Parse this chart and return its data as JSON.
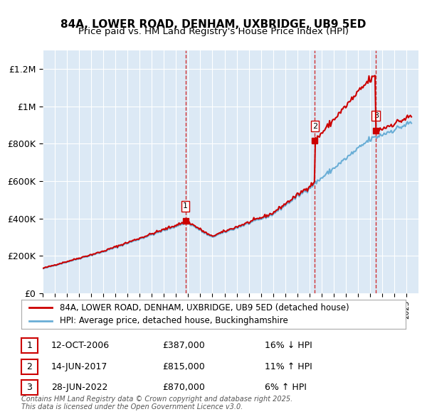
{
  "title": "84A, LOWER ROAD, DENHAM, UXBRIDGE, UB9 5ED",
  "subtitle": "Price paid vs. HM Land Registry's House Price Index (HPI)",
  "background_color": "#dce9f5",
  "plot_bg_color": "#dce9f5",
  "hpi_color": "#6aaed6",
  "price_color": "#cc0000",
  "vline_color": "#cc0000",
  "ylabel": "",
  "ylim": [
    0,
    1300000
  ],
  "yticks": [
    0,
    200000,
    400000,
    600000,
    800000,
    1000000,
    1200000
  ],
  "ytick_labels": [
    "£0",
    "£200K",
    "£400K",
    "£600K",
    "£800K",
    "£1M",
    "£1.2M"
  ],
  "sale_dates": [
    "2006-10-12",
    "2017-06-14",
    "2022-06-28"
  ],
  "sale_prices": [
    387000,
    815000,
    870000
  ],
  "sale_labels": [
    "1",
    "2",
    "3"
  ],
  "sale_info": [
    {
      "num": "1",
      "date": "12-OCT-2006",
      "price": "£387,000",
      "hpi": "16% ↓ HPI"
    },
    {
      "num": "2",
      "date": "14-JUN-2017",
      "price": "£815,000",
      "hpi": "11% ↑ HPI"
    },
    {
      "num": "3",
      "date": "28-JUN-2022",
      "price": "£870,000",
      "hpi": "6% ↑ HPI"
    }
  ],
  "legend_line1": "84A, LOWER ROAD, DENHAM, UXBRIDGE, UB9 5ED (detached house)",
  "legend_line2": "HPI: Average price, detached house, Buckinghamshire",
  "footer": "Contains HM Land Registry data © Crown copyright and database right 2025.\nThis data is licensed under the Open Government Licence v3.0."
}
